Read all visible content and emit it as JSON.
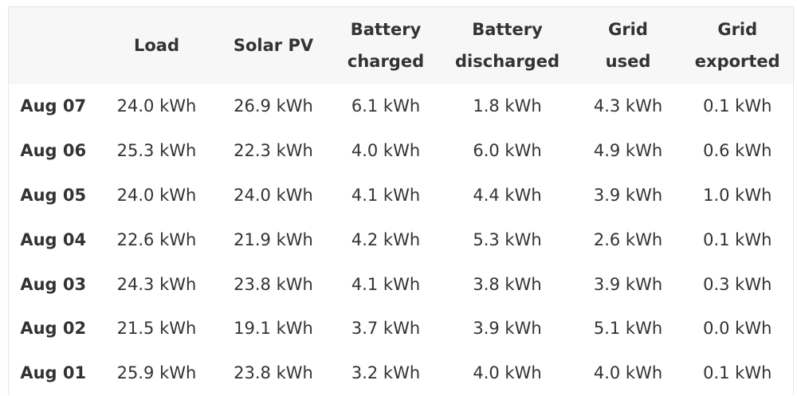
{
  "table": {
    "headers": [
      "Load",
      "Solar PV",
      "Battery charged",
      "Battery discharged",
      "Grid used",
      "Grid exported"
    ],
    "rows": [
      [
        "Aug 07",
        "24.0 kWh",
        "26.9 kWh",
        "6.1 kWh",
        "1.8 kWh",
        "4.3 kWh",
        "0.1 kWh"
      ],
      [
        "Aug 06",
        "25.3 kWh",
        "22.3 kWh",
        "4.0 kWh",
        "6.0 kWh",
        "4.9 kWh",
        "0.6 kWh"
      ],
      [
        "Aug 05",
        "24.0 kWh",
        "24.0 kWh",
        "4.1 kWh",
        "4.4 kWh",
        "3.9 kWh",
        "1.0 kWh"
      ],
      [
        "Aug 04",
        "22.6 kWh",
        "21.9 kWh",
        "4.2 kWh",
        "5.3 kWh",
        "2.6 kWh",
        "0.1 kWh"
      ],
      [
        "Aug 03",
        "24.3 kWh",
        "23.8 kWh",
        "4.1 kWh",
        "3.8 kWh",
        "3.9 kWh",
        "0.3 kWh"
      ],
      [
        "Aug 02",
        "21.5 kWh",
        "19.1 kWh",
        "3.7 kWh",
        "3.9 kWh",
        "5.1 kWh",
        "0.0 kWh"
      ],
      [
        "Aug 01",
        "25.9 kWh",
        "23.8 kWh",
        "3.2 kWh",
        "4.0 kWh",
        "4.0 kWh",
        "0.1 kWh"
      ]
    ]
  }
}
